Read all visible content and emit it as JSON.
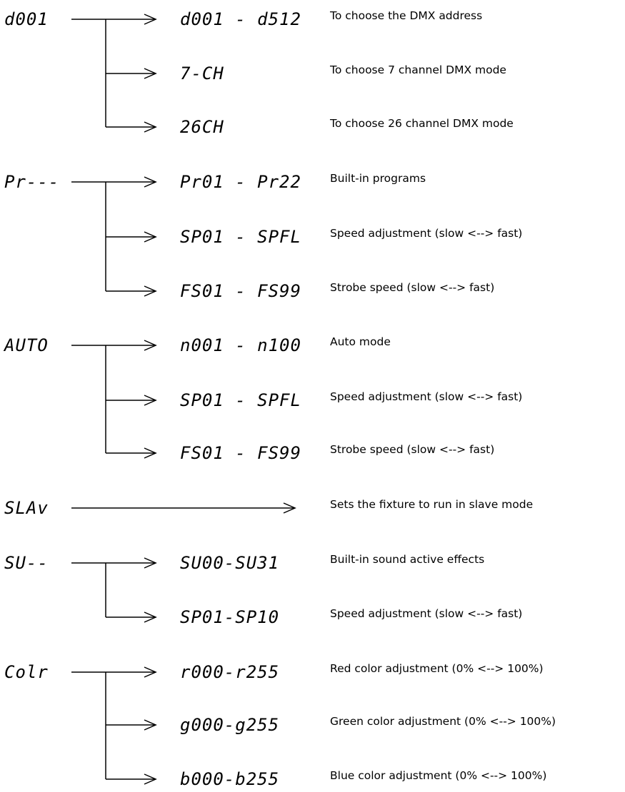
{
  "groups": [
    {
      "menu": "d001",
      "options": [
        {
          "code": "d001 - d512",
          "description": "To choose the DMX address"
        },
        {
          "code": "7-CH",
          "description": "To choose 7 channel DMX mode"
        },
        {
          "code": "26CH",
          "description": "To choose 26 channel DMX mode"
        }
      ]
    },
    {
      "menu": "Pr---",
      "options": [
        {
          "code": "Pr01 - Pr22",
          "description": "Built-in programs"
        },
        {
          "code": "SP01 - SPFL",
          "description": "Speed adjustment (slow <--> fast)"
        },
        {
          "code": "FS01 - FS99",
          "description": "Strobe speed (slow <--> fast)"
        }
      ]
    },
    {
      "menu": "AUTO",
      "options": [
        {
          "code": "n001 - n100",
          "description": "Auto mode"
        },
        {
          "code": "SP01 - SPFL",
          "description": "Speed adjustment (slow <--> fast)"
        },
        {
          "code": "FS01 - FS99",
          "description": "Strobe speed (slow <--> fast)"
        }
      ]
    },
    {
      "menu": "SLAv",
      "options": [
        {
          "code": "",
          "description": "Sets the fixture to run in slave mode"
        }
      ]
    },
    {
      "menu": "SU--",
      "options": [
        {
          "code": "SU00-SU31",
          "description": "Built-in sound active effects"
        },
        {
          "code": "SP01-SP10",
          "description": "Speed adjustment (slow <--> fast)"
        }
      ]
    },
    {
      "menu": "Colr",
      "options": [
        {
          "code": "r000-r255",
          "description": "Red color adjustment (0% <--> 100%)"
        },
        {
          "code": "g000-g255",
          "description": "Green color adjustment (0% <--> 100%)"
        },
        {
          "code": "b000-b255",
          "description": "Blue color adjustment (0% <--> 100%)"
        }
      ]
    }
  ]
}
